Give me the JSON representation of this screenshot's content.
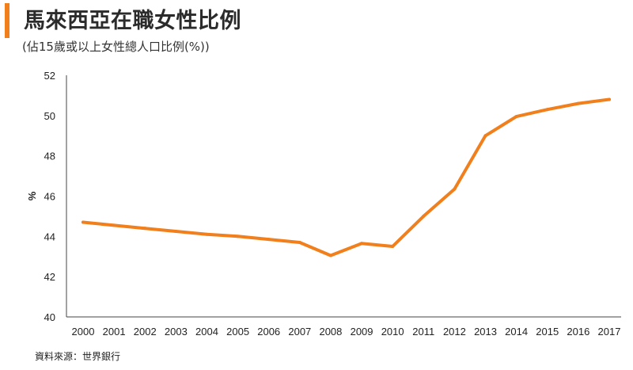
{
  "header": {
    "title": "馬來西亞在職女性比例",
    "subtitle": "(佔15歲或以上女性總人口比例(%))"
  },
  "footer": {
    "source": "資料來源：世界銀行"
  },
  "colors": {
    "accent": "#f07f1c",
    "line": "#f07f1c",
    "axis": "#444444"
  },
  "chart_data": {
    "type": "line",
    "title": "馬來西亞在職女性比例",
    "subtitle": "(佔15歲或以上女性總人口比例(%))",
    "xlabel": "",
    "ylabel": "%",
    "ylim": [
      40,
      52
    ],
    "yticks": [
      40,
      42,
      44,
      46,
      48,
      50,
      52
    ],
    "grid": false,
    "legend": "none",
    "x": [
      "2000",
      "2001",
      "2002",
      "2003",
      "2004",
      "2005",
      "2006",
      "2007",
      "2008",
      "2009",
      "2010",
      "2011",
      "2012",
      "2013",
      "2014",
      "2015",
      "2016",
      "2017"
    ],
    "series": [
      {
        "values": [
          44.7,
          44.55,
          44.4,
          44.25,
          44.1,
          44.0,
          43.85,
          43.7,
          43.05,
          43.65,
          43.5,
          45.0,
          46.35,
          49.0,
          49.95,
          50.3,
          50.6,
          50.8
        ]
      }
    ]
  }
}
